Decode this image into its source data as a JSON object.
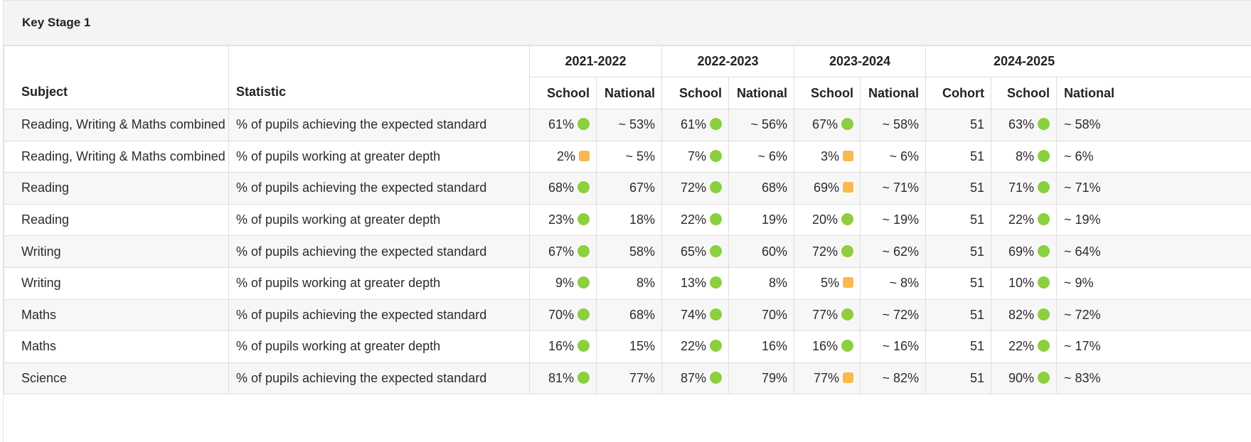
{
  "panel": {
    "title": "Key Stage 1"
  },
  "colors": {
    "green": "#8ccf3f",
    "amber": "#f9b94f"
  },
  "headers": {
    "subject": "Subject",
    "statistic": "Statistic",
    "years": [
      "2021-2022",
      "2022-2023",
      "2023-2024",
      "2024-2025"
    ],
    "school": "School",
    "national": "National",
    "cohort": "Cohort"
  },
  "rows": [
    {
      "subject": "Reading, Writing & Maths combined",
      "statistic": "% of pupils achieving the expected standard",
      "y1": {
        "school": "61%",
        "ind": "green",
        "national": "~ 53%"
      },
      "y2": {
        "school": "61%",
        "ind": "green",
        "national": "~ 56%"
      },
      "y3": {
        "school": "67%",
        "ind": "green",
        "national": "~ 58%"
      },
      "y4": {
        "cohort": "51",
        "school": "63%",
        "ind": "green",
        "national": "~ 58%"
      }
    },
    {
      "subject": "Reading, Writing & Maths combined",
      "statistic": "% of pupils working at greater depth",
      "y1": {
        "school": "2%",
        "ind": "amber",
        "national": "~ 5%"
      },
      "y2": {
        "school": "7%",
        "ind": "green",
        "national": "~ 6%"
      },
      "y3": {
        "school": "3%",
        "ind": "amber",
        "national": "~ 6%"
      },
      "y4": {
        "cohort": "51",
        "school": "8%",
        "ind": "green",
        "national": "~ 6%"
      }
    },
    {
      "subject": "Reading",
      "statistic": "% of pupils achieving the expected standard",
      "y1": {
        "school": "68%",
        "ind": "green",
        "national": "67%"
      },
      "y2": {
        "school": "72%",
        "ind": "green",
        "national": "68%"
      },
      "y3": {
        "school": "69%",
        "ind": "amber",
        "national": "~ 71%"
      },
      "y4": {
        "cohort": "51",
        "school": "71%",
        "ind": "green",
        "national": "~ 71%"
      }
    },
    {
      "subject": "Reading",
      "statistic": "% of pupils working at greater depth",
      "y1": {
        "school": "23%",
        "ind": "green",
        "national": "18%"
      },
      "y2": {
        "school": "22%",
        "ind": "green",
        "national": "19%"
      },
      "y3": {
        "school": "20%",
        "ind": "green",
        "national": "~ 19%"
      },
      "y4": {
        "cohort": "51",
        "school": "22%",
        "ind": "green",
        "national": "~ 19%"
      }
    },
    {
      "subject": "Writing",
      "statistic": "% of pupils achieving the expected standard",
      "y1": {
        "school": "67%",
        "ind": "green",
        "national": "58%"
      },
      "y2": {
        "school": "65%",
        "ind": "green",
        "national": "60%"
      },
      "y3": {
        "school": "72%",
        "ind": "green",
        "national": "~ 62%"
      },
      "y4": {
        "cohort": "51",
        "school": "69%",
        "ind": "green",
        "national": "~ 64%"
      }
    },
    {
      "subject": "Writing",
      "statistic": "% of pupils working at greater depth",
      "y1": {
        "school": "9%",
        "ind": "green",
        "national": "8%"
      },
      "y2": {
        "school": "13%",
        "ind": "green",
        "national": "8%"
      },
      "y3": {
        "school": "5%",
        "ind": "amber",
        "national": "~ 8%"
      },
      "y4": {
        "cohort": "51",
        "school": "10%",
        "ind": "green",
        "national": "~ 9%"
      }
    },
    {
      "subject": "Maths",
      "statistic": "% of pupils achieving the expected standard",
      "y1": {
        "school": "70%",
        "ind": "green",
        "national": "68%"
      },
      "y2": {
        "school": "74%",
        "ind": "green",
        "national": "70%"
      },
      "y3": {
        "school": "77%",
        "ind": "green",
        "national": "~ 72%"
      },
      "y4": {
        "cohort": "51",
        "school": "82%",
        "ind": "green",
        "national": "~ 72%"
      }
    },
    {
      "subject": "Maths",
      "statistic": "% of pupils working at greater depth",
      "y1": {
        "school": "16%",
        "ind": "green",
        "national": "15%"
      },
      "y2": {
        "school": "22%",
        "ind": "green",
        "national": "16%"
      },
      "y3": {
        "school": "16%",
        "ind": "green",
        "national": "~ 16%"
      },
      "y4": {
        "cohort": "51",
        "school": "22%",
        "ind": "green",
        "national": "~ 17%"
      }
    },
    {
      "subject": "Science",
      "statistic": "% of pupils achieving the expected standard",
      "y1": {
        "school": "81%",
        "ind": "green",
        "national": "77%"
      },
      "y2": {
        "school": "87%",
        "ind": "green",
        "national": "79%"
      },
      "y3": {
        "school": "77%",
        "ind": "amber",
        "national": "~ 82%"
      },
      "y4": {
        "cohort": "51",
        "school": "90%",
        "ind": "green",
        "national": "~ 83%"
      }
    }
  ]
}
